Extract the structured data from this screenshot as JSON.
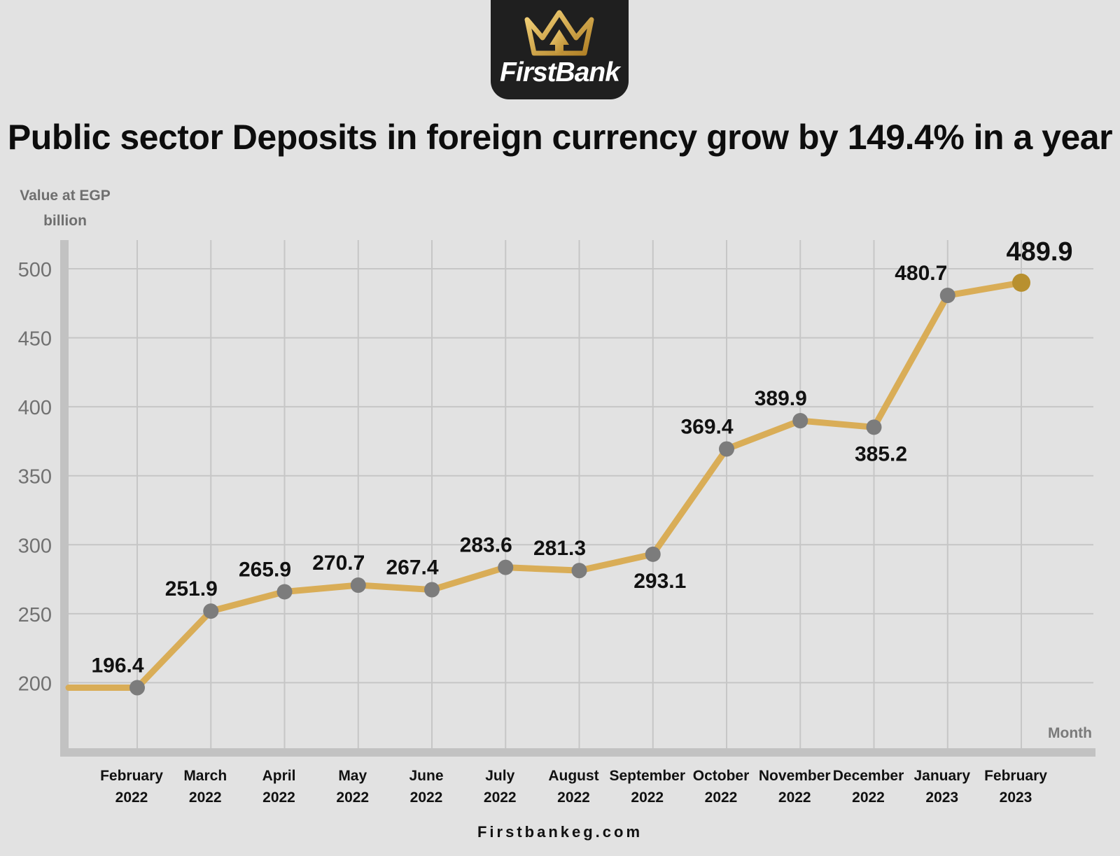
{
  "brand": {
    "name": "FirstBank",
    "footer_url": "Firstbankeg.com"
  },
  "colors": {
    "background": "#e2e2e2",
    "line": "#d9ad57",
    "marker": "#7c7c7c",
    "last_marker": "#b8902f",
    "grid": "#c6c6c6"
  },
  "chart_data": {
    "type": "line",
    "title": "Public sector Deposits in foreign currency grow by 149.4% in a year",
    "ylabel": "Value at EGP billion",
    "xlabel": "Month",
    "ylim": [
      150,
      510
    ],
    "yticks": [
      200,
      250,
      300,
      350,
      400,
      450,
      500
    ],
    "grid": true,
    "categories": [
      [
        "February",
        "2022"
      ],
      [
        "March",
        "2022"
      ],
      [
        "April",
        "2022"
      ],
      [
        "May",
        "2022"
      ],
      [
        "June",
        "2022"
      ],
      [
        "July",
        "2022"
      ],
      [
        "August",
        "2022"
      ],
      [
        "September",
        "2022"
      ],
      [
        "October",
        "2022"
      ],
      [
        "November",
        "2022"
      ],
      [
        "December",
        "2022"
      ],
      [
        "January",
        "2023"
      ],
      [
        "February",
        "2023"
      ]
    ],
    "values": [
      196.4,
      251.9,
      265.9,
      270.7,
      267.4,
      283.6,
      281.3,
      293.1,
      369.4,
      389.9,
      385.2,
      480.7,
      489.9
    ],
    "value_labels": [
      "196.4",
      "251.9",
      "265.9",
      "270.7",
      "267.4",
      "283.6",
      "281.3",
      "293.1",
      "369.4",
      "389.9",
      "385.2",
      "480.7",
      "489.9"
    ],
    "label_position": [
      "above",
      "above",
      "above",
      "above",
      "above",
      "above",
      "above",
      "below",
      "above",
      "above",
      "below",
      "above",
      "above"
    ]
  }
}
